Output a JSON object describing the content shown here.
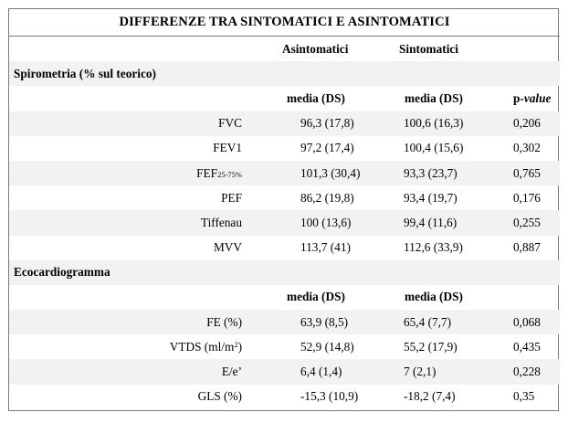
{
  "title": "DIFFERENZE TRA SINTOMATICI E ASINTOMATICI",
  "group_headers": {
    "asintomatici": "Asintomatici",
    "sintomatici": "Sintomatici"
  },
  "spirometria": {
    "heading": "Spirometria (% sul teorico)",
    "col_a": "media (DS)",
    "col_b": "media (DS)",
    "pvalue_prefix": "p-",
    "pvalue_italic": "value",
    "rows": [
      {
        "label": "FVC",
        "asintomatici": "96,3 (17,8)",
        "sintomatici": "100,6 (16,3)",
        "p": "0,206"
      },
      {
        "label": "FEV1",
        "asintomatici": "97,2 (17,4)",
        "sintomatici": "100,4 (15,6)",
        "p": "0,302"
      },
      {
        "label": "FEF",
        "label_sub": "25-75%",
        "asintomatici": "101,3 (30,4)",
        "sintomatici": "93,3 (23,7)",
        "p": "0,765"
      },
      {
        "label": "PEF",
        "asintomatici": "86,2 (19,8)",
        "sintomatici": "93,4 (19,7)",
        "p": "0,176"
      },
      {
        "label": "Tiffenau",
        "asintomatici": "100 (13,6)",
        "sintomatici": "99,4 (11,6)",
        "p": "0,255"
      },
      {
        "label": "MVV",
        "asintomatici": "113,7 (41)",
        "sintomatici": "112,6 (33,9)",
        "p": "0,887"
      }
    ]
  },
  "ecocardiogramma": {
    "heading": "Ecocardiogramma",
    "col_a": "media (DS)",
    "col_b": "media (DS)",
    "rows": [
      {
        "label": "FE (%)",
        "asintomatici": "63,9 (8,5)",
        "sintomatici": "65,4 (7,7)",
        "p": "0,068"
      },
      {
        "label": "VTDS (ml/m",
        "label_sup": "2",
        "label_after": ")",
        "asintomatici": "52,9 (14,8)",
        "sintomatici": "55,2 (17,9)",
        "p": "0,435"
      },
      {
        "label": "E/e’",
        "asintomatici": "6,4 (1,4)",
        "sintomatici": "7 (2,1)",
        "p": "0,228"
      },
      {
        "label": "GLS (%)",
        "asintomatici": "-15,3 (10,9)",
        "sintomatici": "-18,2 (7,4)",
        "p": "0,35"
      }
    ]
  }
}
